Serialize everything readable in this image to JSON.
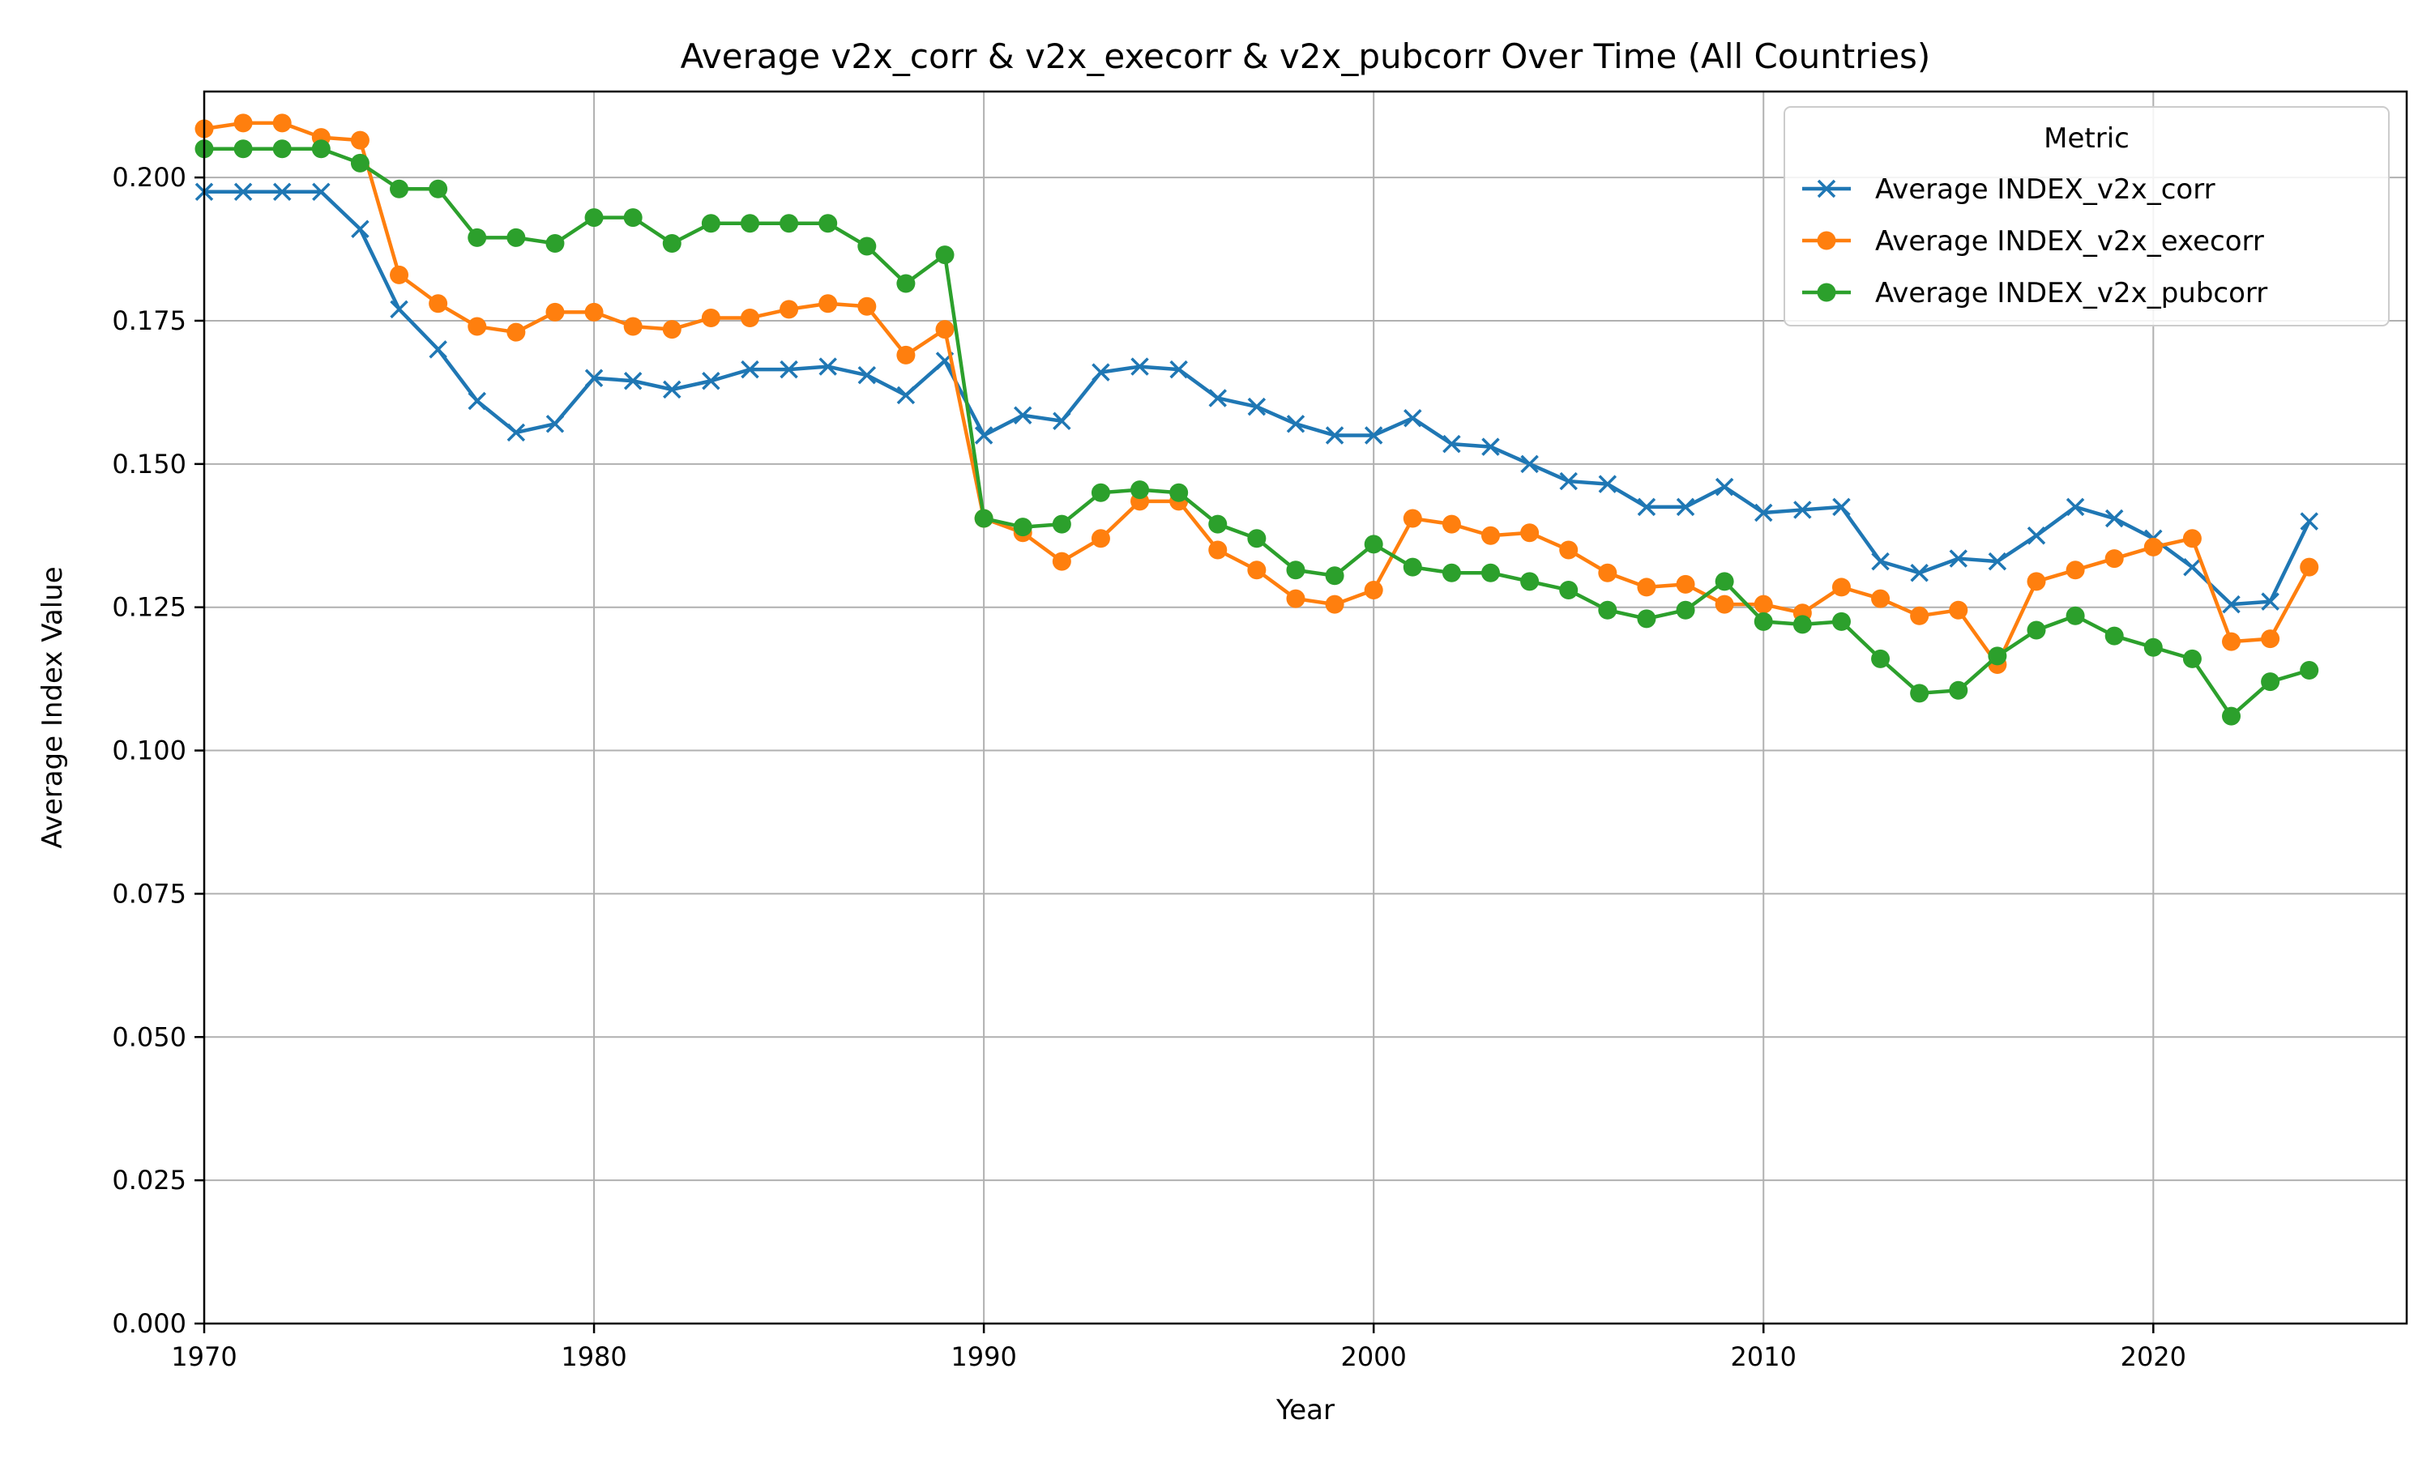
{
  "chart_data": {
    "type": "line",
    "title": "Average v2x_corr & v2x_execorr & v2x_pubcorr Over Time (All Countries)",
    "xlabel": "Year",
    "ylabel": "Average Index Value",
    "xlim": [
      1970,
      2026.5
    ],
    "ylim": [
      0,
      0.215
    ],
    "xticks": [
      1970,
      1980,
      1990,
      2000,
      2010,
      2020
    ],
    "yticks": [
      "0.000",
      "0.025",
      "0.050",
      "0.075",
      "0.100",
      "0.125",
      "0.150",
      "0.175",
      "0.200"
    ],
    "grid": true,
    "legend": {
      "title": "Metric",
      "placement": "top-right"
    },
    "x": [
      1970,
      1971,
      1972,
      1973,
      1974,
      1975,
      1976,
      1977,
      1978,
      1979,
      1980,
      1981,
      1982,
      1983,
      1984,
      1985,
      1986,
      1987,
      1988,
      1989,
      1990,
      1991,
      1992,
      1993,
      1994,
      1995,
      1996,
      1997,
      1998,
      1999,
      2000,
      2001,
      2002,
      2003,
      2004,
      2005,
      2006,
      2007,
      2008,
      2009,
      2010,
      2011,
      2012,
      2013,
      2014,
      2015,
      2016,
      2017,
      2018,
      2019,
      2020,
      2021,
      2022,
      2023,
      2024
    ],
    "series": [
      {
        "name": "Average INDEX_v2x_corr",
        "color": "#1f77b4",
        "marker": "x",
        "values": [
          0.1975,
          0.1975,
          0.1975,
          0.1975,
          0.191,
          0.177,
          0.17,
          0.161,
          0.1555,
          0.157,
          0.165,
          0.1645,
          0.163,
          0.1645,
          0.1665,
          0.1665,
          0.167,
          0.1655,
          0.162,
          0.168,
          0.155,
          0.1585,
          0.1575,
          0.166,
          0.167,
          0.1665,
          0.1615,
          0.16,
          0.157,
          0.155,
          0.155,
          0.158,
          0.1535,
          0.153,
          0.15,
          0.147,
          0.1465,
          0.1425,
          0.1425,
          0.146,
          0.1415,
          0.142,
          0.1425,
          0.133,
          0.131,
          0.1335,
          0.133,
          0.1375,
          0.1425,
          0.1405,
          0.137,
          0.132,
          0.1255,
          0.126,
          0.14
        ]
      },
      {
        "name": "Average INDEX_v2x_execorr",
        "color": "#ff7f0e",
        "marker": "o",
        "values": [
          0.2085,
          0.2095,
          0.2095,
          0.207,
          0.2065,
          0.183,
          0.178,
          0.174,
          0.173,
          0.1765,
          0.1765,
          0.174,
          0.1735,
          0.1755,
          0.1755,
          0.177,
          0.178,
          0.1775,
          0.169,
          0.1735,
          0.1405,
          0.138,
          0.133,
          0.137,
          0.1435,
          0.1435,
          0.135,
          0.1315,
          0.1265,
          0.1255,
          0.128,
          0.1405,
          0.1395,
          0.1375,
          0.138,
          0.135,
          0.131,
          0.1285,
          0.129,
          0.1255,
          0.1255,
          0.124,
          0.1285,
          0.1265,
          0.1235,
          0.1245,
          0.115,
          0.1295,
          0.1315,
          0.1335,
          0.1355,
          0.137,
          0.119,
          0.1195,
          0.132
        ]
      },
      {
        "name": "Average INDEX_v2x_pubcorr",
        "color": "#2ca02c",
        "marker": "o",
        "values": [
          0.205,
          0.205,
          0.205,
          0.205,
          0.2025,
          0.198,
          0.198,
          0.1895,
          0.1895,
          0.1885,
          0.193,
          0.193,
          0.1885,
          0.192,
          0.192,
          0.192,
          0.192,
          0.188,
          0.1815,
          0.1865,
          0.1405,
          0.139,
          0.1395,
          0.145,
          0.1455,
          0.145,
          0.1395,
          0.137,
          0.1315,
          0.1305,
          0.136,
          0.132,
          0.131,
          0.131,
          0.1295,
          0.128,
          0.1245,
          0.123,
          0.1245,
          0.1295,
          0.1225,
          0.122,
          0.1225,
          0.116,
          0.11,
          0.1105,
          0.1165,
          0.121,
          0.1235,
          0.12,
          0.118,
          0.116,
          0.106,
          0.112,
          0.114
        ]
      }
    ]
  }
}
